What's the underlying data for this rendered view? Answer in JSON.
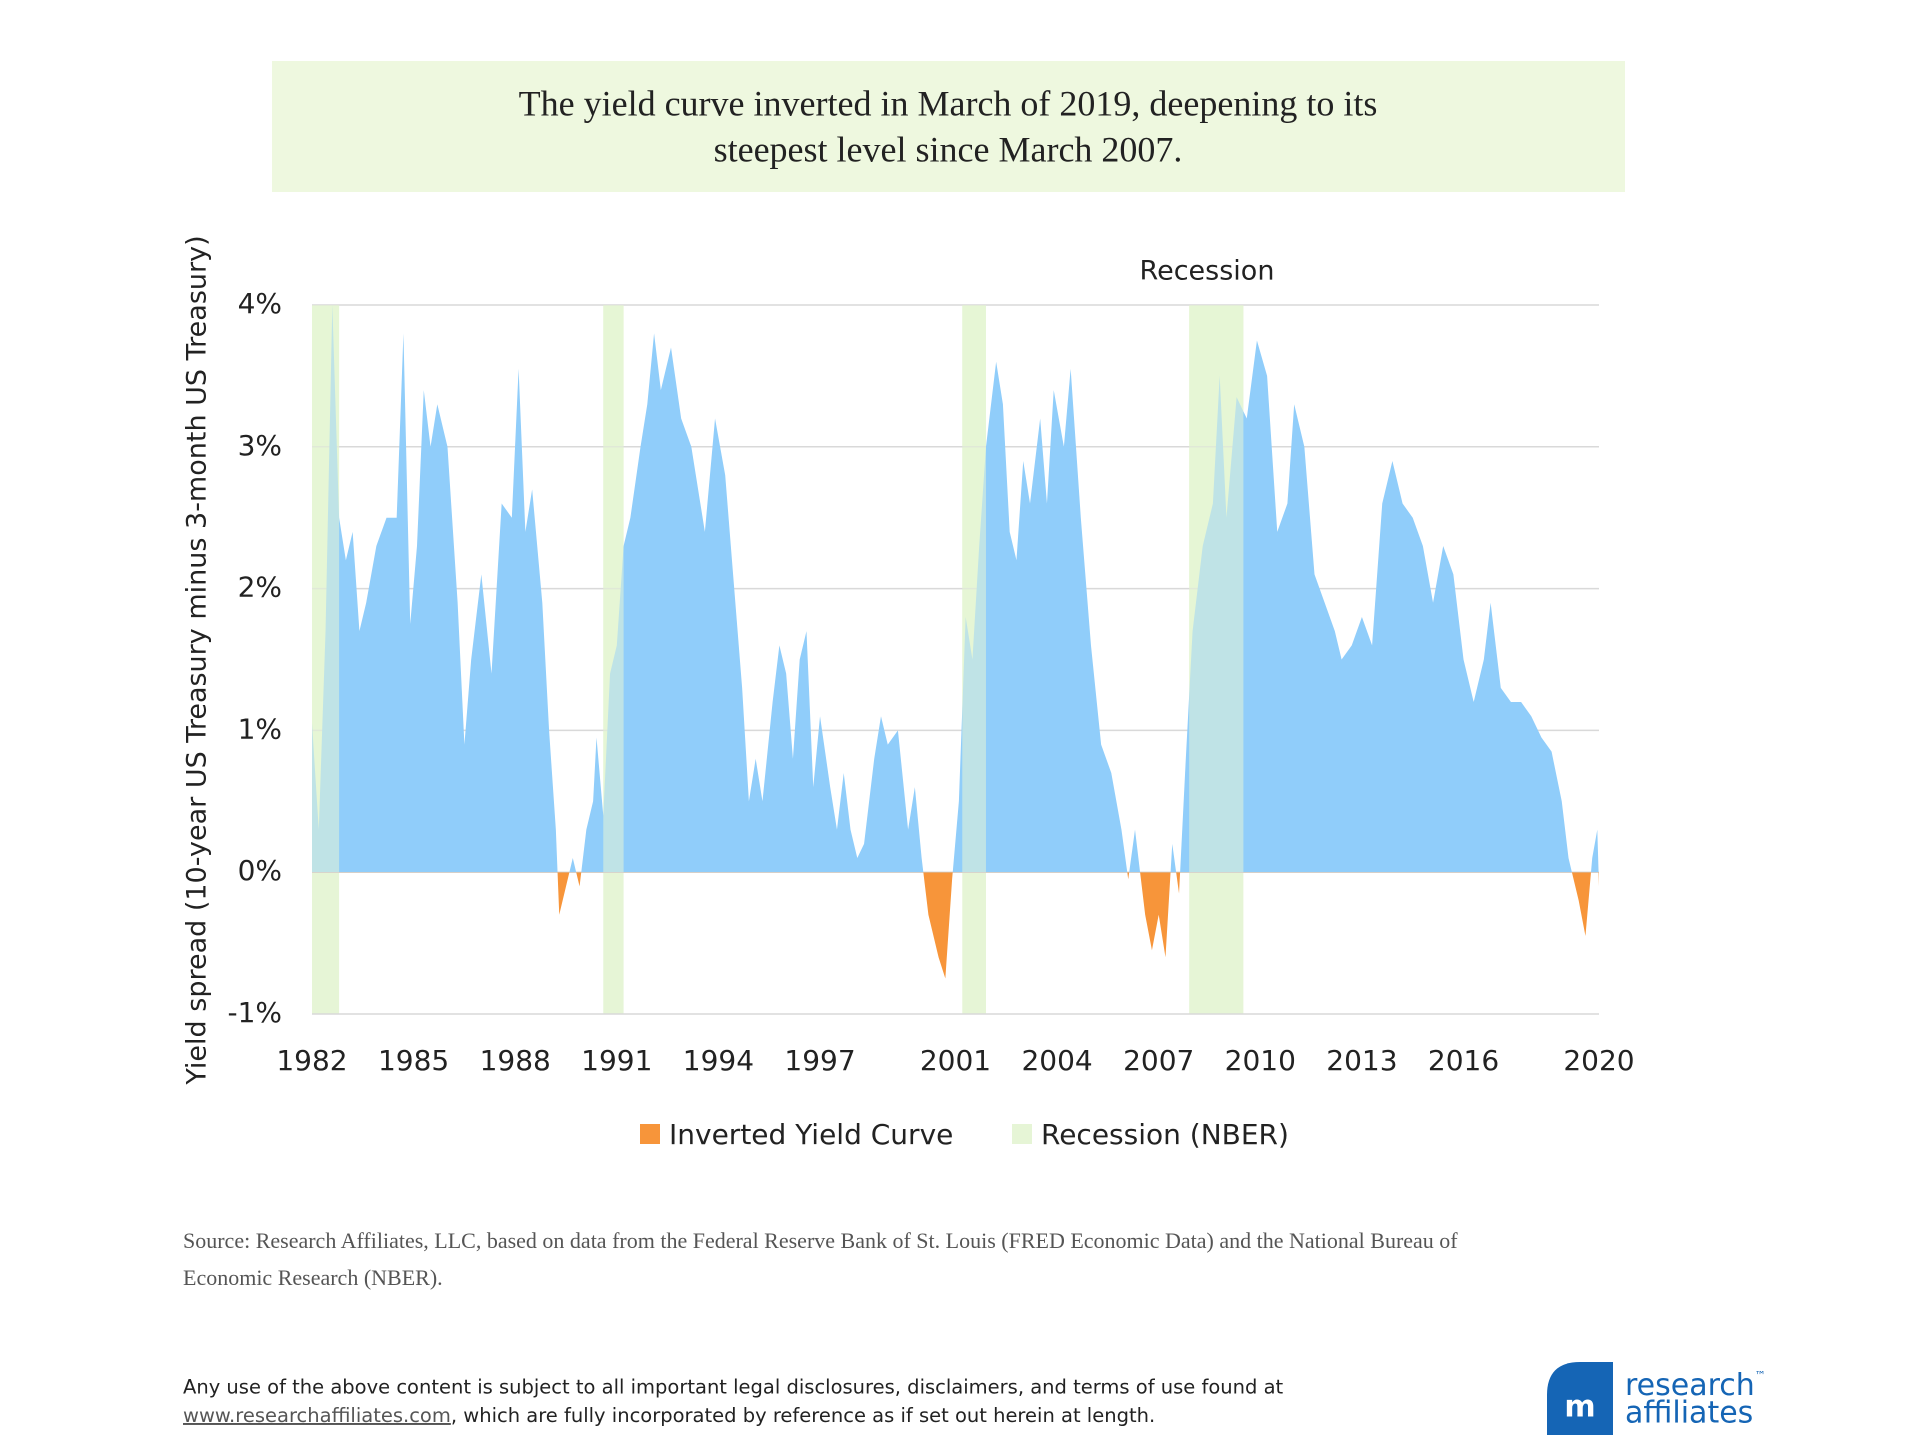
{
  "chart_data": {
    "type": "area",
    "title": [
      "The yield curve inverted in March of 2019, deepening to its",
      "steepest level since March 2007."
    ],
    "y_label": "Yield spread (10-year US Treasury minus 3-month US Treasury)",
    "annotation": "Recession",
    "xlim": [
      1982,
      2020
    ],
    "xticks": [
      1982,
      1985,
      1988,
      1991,
      1994,
      1997,
      2001,
      2004,
      2007,
      2010,
      2013,
      2016,
      2020
    ],
    "ylim": [
      -1,
      4
    ],
    "yticks": [
      {
        "value": -1,
        "label": "-1%"
      },
      {
        "value": 0,
        "label": "0%"
      },
      {
        "value": 1,
        "label": "1%"
      },
      {
        "value": 2,
        "label": "2%"
      },
      {
        "value": 3,
        "label": "3%"
      },
      {
        "value": 4,
        "label": "4%"
      }
    ],
    "grid": true,
    "positive_color": "#90cdfa",
    "negative_color": "#f7953a",
    "recession_color": "#e6f5d6",
    "legend": [
      {
        "label": "Inverted Yield Curve",
        "color": "#f7953a"
      },
      {
        "label": "Recession (NBER)",
        "color": "#e6f5d6"
      }
    ],
    "recessions": [
      [
        1982.0,
        1982.8
      ],
      [
        1990.6,
        1991.2
      ],
      [
        2001.2,
        2001.9
      ],
      [
        2007.9,
        2009.5
      ]
    ],
    "x": [
      1982.0,
      1982.2,
      1982.4,
      1982.6,
      1982.8,
      1983.0,
      1983.2,
      1983.4,
      1983.6,
      1983.9,
      1984.2,
      1984.5,
      1984.7,
      1984.9,
      1985.1,
      1985.3,
      1985.5,
      1985.7,
      1986.0,
      1986.3,
      1986.5,
      1986.7,
      1987.0,
      1987.3,
      1987.6,
      1987.9,
      1988.1,
      1988.3,
      1988.5,
      1988.8,
      1989.0,
      1989.2,
      1989.3,
      1989.5,
      1989.7,
      1989.9,
      1990.1,
      1990.3,
      1990.4,
      1990.6,
      1990.8,
      1991.0,
      1991.2,
      1991.4,
      1991.7,
      1991.9,
      1992.1,
      1992.3,
      1992.6,
      1992.9,
      1993.2,
      1993.4,
      1993.6,
      1993.9,
      1994.2,
      1994.4,
      1994.7,
      1994.9,
      1995.1,
      1995.3,
      1995.6,
      1995.8,
      1996.0,
      1996.2,
      1996.4,
      1996.6,
      1996.8,
      1997.0,
      1997.3,
      1997.5,
      1997.7,
      1997.9,
      1998.1,
      1998.3,
      1998.6,
      1998.8,
      1999.0,
      1999.3,
      1999.6,
      1999.8,
      2000.0,
      2000.2,
      2000.5,
      2000.7,
      2000.9,
      2001.1,
      2001.3,
      2001.5,
      2001.7,
      2001.9,
      2002.2,
      2002.4,
      2002.6,
      2002.8,
      2003.0,
      2003.2,
      2003.5,
      2003.7,
      2003.9,
      2004.2,
      2004.4,
      2004.7,
      2005.0,
      2005.3,
      2005.6,
      2005.9,
      2006.1,
      2006.3,
      2006.6,
      2006.8,
      2007.0,
      2007.2,
      2007.4,
      2007.6,
      2007.8,
      2008.0,
      2008.3,
      2008.6,
      2008.8,
      2009.0,
      2009.3,
      2009.6,
      2009.9,
      2010.2,
      2010.5,
      2010.8,
      2011.0,
      2011.3,
      2011.6,
      2011.9,
      2012.2,
      2012.4,
      2012.7,
      2013.0,
      2013.3,
      2013.6,
      2013.9,
      2014.2,
      2014.5,
      2014.8,
      2015.1,
      2015.4,
      2015.7,
      2016.0,
      2016.3,
      2016.6,
      2016.8,
      2017.1,
      2017.4,
      2017.7,
      2018.0,
      2018.3,
      2018.6,
      2018.9,
      2019.1,
      2019.2,
      2019.4,
      2019.6,
      2019.8,
      2019.95,
      2020.0
    ],
    "values": [
      1.05,
      0.3,
      1.7,
      4.0,
      2.5,
      2.2,
      2.4,
      1.7,
      1.9,
      2.3,
      2.5,
      2.5,
      3.8,
      1.75,
      2.3,
      3.4,
      3.0,
      3.3,
      3.0,
      1.9,
      0.9,
      1.5,
      2.1,
      1.4,
      2.6,
      2.5,
      3.55,
      2.4,
      2.7,
      1.9,
      1.0,
      0.3,
      -0.3,
      -0.1,
      0.1,
      -0.1,
      0.3,
      0.5,
      0.95,
      0.4,
      1.4,
      1.6,
      2.3,
      2.5,
      3.0,
      3.3,
      3.8,
      3.4,
      3.7,
      3.2,
      3.0,
      2.7,
      2.4,
      3.2,
      2.8,
      2.2,
      1.3,
      0.5,
      0.8,
      0.5,
      1.2,
      1.6,
      1.4,
      0.8,
      1.5,
      1.7,
      0.6,
      1.1,
      0.6,
      0.3,
      0.7,
      0.3,
      0.1,
      0.2,
      0.8,
      1.1,
      0.9,
      1.0,
      0.3,
      0.6,
      0.1,
      -0.3,
      -0.6,
      -0.75,
      -0.05,
      0.5,
      1.8,
      1.5,
      2.3,
      3.0,
      3.6,
      3.3,
      2.4,
      2.2,
      2.9,
      2.6,
      3.2,
      2.6,
      3.4,
      3.0,
      3.55,
      2.5,
      1.6,
      0.9,
      0.7,
      0.3,
      -0.05,
      0.3,
      -0.3,
      -0.55,
      -0.3,
      -0.6,
      0.2,
      -0.15,
      0.8,
      1.7,
      2.3,
      2.6,
      3.5,
      2.5,
      3.35,
      3.2,
      3.75,
      3.5,
      2.4,
      2.6,
      3.3,
      3.0,
      2.1,
      1.9,
      1.7,
      1.5,
      1.6,
      1.8,
      1.6,
      2.6,
      2.9,
      2.6,
      2.5,
      2.3,
      1.9,
      2.3,
      2.1,
      1.5,
      1.2,
      1.5,
      1.9,
      1.3,
      1.2,
      1.2,
      1.1,
      0.95,
      0.85,
      0.5,
      0.1,
      0.0,
      -0.2,
      -0.45,
      0.1,
      0.3,
      -0.1
    ]
  },
  "source": [
    "Source: Research Affiliates, LLC, based on data from the Federal Reserve Bank of St. Louis (FRED Economic Data) and the National Bureau of",
    "Economic Research (NBER)."
  ],
  "disclaimer": {
    "line1": "Any use of the above content is subject to all important legal disclosures, disclaimers, and terms of use found at",
    "link": "www.researchaffiliates.com",
    "line2_rest": ",  which are fully incorporated by reference as if set out herein at length."
  },
  "logo": {
    "line1": "research",
    "tm": "™",
    "line2": "affiliates"
  }
}
